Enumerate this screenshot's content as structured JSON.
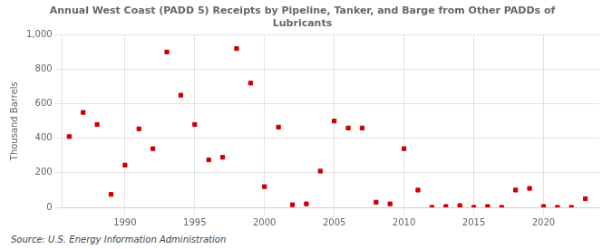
{
  "chart_data": {
    "type": "scatter",
    "title": "Annual West Coast (PADD 5) Receipts by Pipeline, Tanker, and Barge from Other PADDs of\nLubricants",
    "ylabel": "Thousand Barrels",
    "annotations": [
      "Source: U.S. Energy Information Administration"
    ],
    "x": [
      1986,
      1987,
      1988,
      1989,
      1990,
      1991,
      1992,
      1993,
      1994,
      1995,
      1996,
      1997,
      1998,
      1999,
      2000,
      2001,
      2002,
      2003,
      2004,
      2005,
      2006,
      2007,
      2008,
      2009,
      2010,
      2011,
      2012,
      2013,
      2014,
      2015,
      2016,
      2017,
      2018,
      2019,
      2020,
      2021,
      2022,
      2023
    ],
    "values": [
      410,
      550,
      480,
      75,
      245,
      455,
      340,
      900,
      650,
      480,
      275,
      290,
      920,
      720,
      120,
      465,
      15,
      20,
      210,
      500,
      460,
      460,
      30,
      20,
      340,
      100,
      0,
      5,
      10,
      0,
      5,
      0,
      100,
      110,
      5,
      0,
      0,
      50
    ],
    "color": "#cc0000",
    "marker": "square",
    "xlim": [
      1985.5,
      2024
    ],
    "xticks": [
      1990,
      1995,
      2000,
      2005,
      2010,
      2015,
      2020
    ],
    "ylim": [
      0,
      1000
    ],
    "yticks": [
      0,
      200,
      400,
      600,
      800,
      {
        "value": 1000,
        "label": "1,000"
      }
    ],
    "grid": true
  }
}
